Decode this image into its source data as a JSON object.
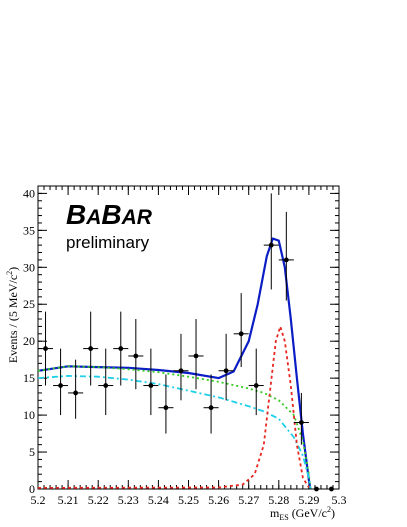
{
  "chart_data": {
    "type": "scatter",
    "logo": {
      "b1": "B",
      "a1": "A",
      "b2": "B",
      "a2": "AR"
    },
    "subtitle": "preliminary",
    "xlabel_main": "m",
    "xlabel_sub": "ES",
    "xlabel_unit": " (GeV/c",
    "xlabel_unit_sup": "2",
    "xlabel_close": ")",
    "ylabel_main": "Events / (5 MeV/c",
    "ylabel_sup": "2",
    "ylabel_close": ")",
    "xlim": [
      5.2,
      5.3
    ],
    "ylim": [
      0,
      41
    ],
    "xticks": [
      5.2,
      5.21,
      5.22,
      5.23,
      5.24,
      5.25,
      5.26,
      5.27,
      5.28,
      5.29,
      5.3
    ],
    "xtick_labels": [
      "5.2",
      "5.21",
      "5.22",
      "5.23",
      "5.24",
      "5.25",
      "5.26",
      "5.27",
      "5.28",
      "5.29",
      "5.3"
    ],
    "yticks": [
      0,
      5,
      10,
      15,
      20,
      25,
      30,
      35,
      40
    ],
    "ytick_labels": [
      "0",
      "5",
      "10",
      "15",
      "20",
      "25",
      "30",
      "35",
      "40"
    ],
    "grid": false,
    "series": [
      {
        "kind": "points",
        "x_err": 0.0025,
        "points": [
          {
            "x": 5.2025,
            "y": 19,
            "lo": 5,
            "hi": 5
          },
          {
            "x": 5.2075,
            "y": 14,
            "lo": 4,
            "hi": 5
          },
          {
            "x": 5.2125,
            "y": 13,
            "lo": 3.5,
            "hi": 4.5
          },
          {
            "x": 5.2175,
            "y": 19,
            "lo": 5,
            "hi": 5
          },
          {
            "x": 5.2225,
            "y": 14,
            "lo": 4,
            "hi": 5
          },
          {
            "x": 5.2275,
            "y": 19,
            "lo": 5,
            "hi": 5
          },
          {
            "x": 5.2325,
            "y": 18,
            "lo": 4.5,
            "hi": 5
          },
          {
            "x": 5.2375,
            "y": 14,
            "lo": 4,
            "hi": 5
          },
          {
            "x": 5.2425,
            "y": 11,
            "lo": 3.5,
            "hi": 4.5
          },
          {
            "x": 5.2475,
            "y": 16,
            "lo": 4,
            "hi": 5
          },
          {
            "x": 5.2525,
            "y": 18,
            "lo": 4.5,
            "hi": 5
          },
          {
            "x": 5.2575,
            "y": 11,
            "lo": 3.5,
            "hi": 4.5
          },
          {
            "x": 5.2625,
            "y": 16,
            "lo": 4,
            "hi": 5
          },
          {
            "x": 5.2675,
            "y": 21,
            "lo": 4.5,
            "hi": 5.5
          },
          {
            "x": 5.2725,
            "y": 14,
            "lo": 4,
            "hi": 5
          },
          {
            "x": 5.2775,
            "y": 33,
            "lo": 6,
            "hi": 7
          },
          {
            "x": 5.2825,
            "y": 31,
            "lo": 5.5,
            "hi": 6.5
          },
          {
            "x": 5.2875,
            "y": 9,
            "lo": 3,
            "hi": 4
          },
          {
            "x": 5.2925,
            "y": 0,
            "lo": 0,
            "hi": 0
          },
          {
            "x": 5.2975,
            "y": 0,
            "lo": 0,
            "hi": 0
          }
        ]
      },
      {
        "kind": "curve",
        "style": "solid",
        "color": "#0b1dc4",
        "x": [
          5.2,
          5.21,
          5.22,
          5.23,
          5.24,
          5.25,
          5.26,
          5.265,
          5.27,
          5.273,
          5.276,
          5.278,
          5.28,
          5.282,
          5.284,
          5.286,
          5.288,
          5.29,
          5.2905
        ],
        "y": [
          16.0,
          16.6,
          16.5,
          16.4,
          16.1,
          15.7,
          15.0,
          15.9,
          20.0,
          25.0,
          31.5,
          33.9,
          33.6,
          30.0,
          23.0,
          15.0,
          7.5,
          1.2,
          0.0
        ]
      },
      {
        "kind": "curve",
        "style": "dotted",
        "color": "#33cc22",
        "x": [
          5.2,
          5.21,
          5.22,
          5.23,
          5.24,
          5.25,
          5.26,
          5.27,
          5.275,
          5.28,
          5.285,
          5.288,
          5.29,
          5.2905
        ],
        "y": [
          16.0,
          16.6,
          16.5,
          16.2,
          15.8,
          15.2,
          14.5,
          13.6,
          13.0,
          12.0,
          10.0,
          6.5,
          2.0,
          0.0
        ]
      },
      {
        "kind": "curve",
        "style": "dashdot",
        "color": "#1ecfe8",
        "x": [
          5.2,
          5.21,
          5.22,
          5.23,
          5.24,
          5.25,
          5.26,
          5.27,
          5.275,
          5.28,
          5.285,
          5.288,
          5.29,
          5.2905
        ],
        "y": [
          15.0,
          15.3,
          15.2,
          14.8,
          14.2,
          13.3,
          12.4,
          11.2,
          10.5,
          9.5,
          7.0,
          4.5,
          1.5,
          0.0
        ]
      },
      {
        "kind": "curve",
        "style": "dashed",
        "color": "#e6261f",
        "x": [
          5.2,
          5.26,
          5.268,
          5.272,
          5.275,
          5.277,
          5.279,
          5.2805,
          5.282,
          5.284,
          5.286,
          5.288,
          5.29
        ],
        "y": [
          0.15,
          0.2,
          0.6,
          2.0,
          6.0,
          13.0,
          20.0,
          22.0,
          20.0,
          14.0,
          6.0,
          1.5,
          0.2
        ]
      }
    ]
  }
}
